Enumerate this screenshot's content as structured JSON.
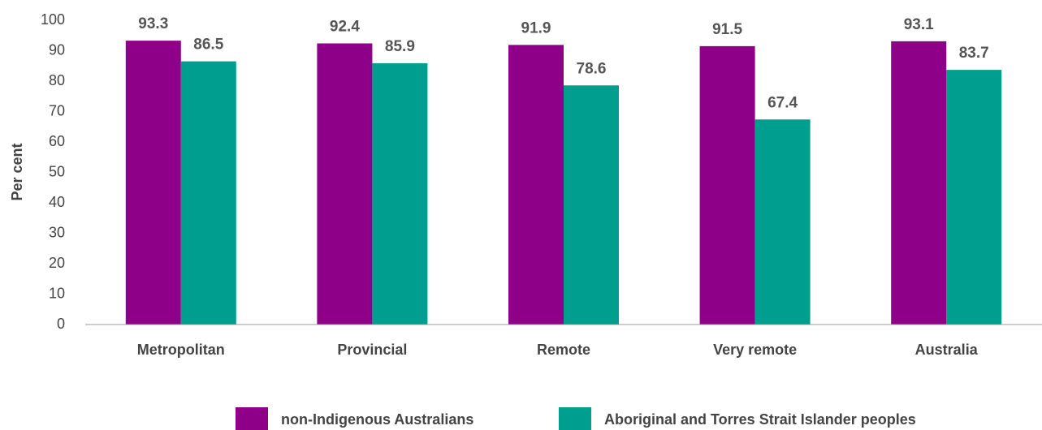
{
  "chart_data": {
    "type": "bar",
    "y_label": "Per cent",
    "categories": [
      "Metropolitan",
      "Provincial",
      "Remote",
      "Very remote",
      "Australia"
    ],
    "series": [
      {
        "name": "non-Indigenous Australians",
        "color": "#8e0087",
        "values": [
          93.3,
          92.4,
          91.9,
          91.5,
          93.1
        ]
      },
      {
        "name": "Aboriginal and Torres Strait Islander peoples",
        "color": "#009e8f",
        "values": [
          86.5,
          85.9,
          78.6,
          67.4,
          83.7
        ]
      }
    ],
    "ylim": [
      0,
      100
    ],
    "yticks": [
      0,
      10,
      20,
      30,
      40,
      50,
      60,
      70,
      80,
      90,
      100
    ],
    "grid": false,
    "legend": "bottom"
  }
}
